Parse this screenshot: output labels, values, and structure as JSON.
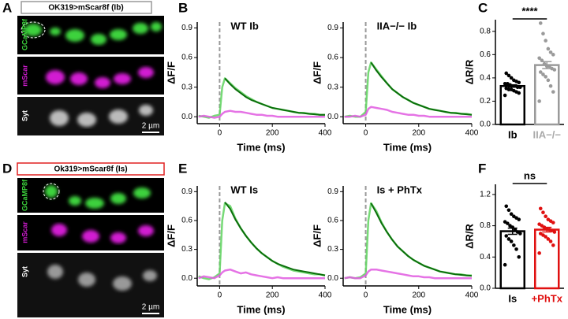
{
  "figure": {
    "panel_labels": [
      "A",
      "B",
      "C",
      "D",
      "E",
      "F"
    ]
  },
  "images": {
    "title_top": "OK319>mScar8f (Ib)",
    "title_bottom": "Ok319>mScar8f (Is)",
    "channels": [
      "GCaMP8f",
      "mScar",
      "Syt"
    ],
    "scale_bar": "2 µm"
  },
  "chart_data": [
    {
      "type": "line",
      "title": "WT Ib",
      "x_label": "Time (ms)",
      "y_label": "ΔF/F",
      "xlim": [
        -85,
        400
      ],
      "ylim": [
        -0.07,
        0.96
      ],
      "xticks": [
        0,
        200,
        400
      ],
      "yticks": [
        {
          "value": 0,
          "label": "0.0"
        },
        0.3,
        0.6,
        0.9
      ],
      "vline": 0,
      "x": [
        -80,
        -60,
        -40,
        -20,
        0,
        10,
        20,
        40,
        60,
        80,
        100,
        120,
        140,
        160,
        180,
        200,
        220,
        240,
        260,
        280,
        300,
        320,
        340,
        360,
        380,
        400
      ],
      "series": [
        {
          "color": "#5fd35f",
          "values": [
            0.01,
            0,
            -0.01,
            0.01,
            0.02,
            0.3,
            0.39,
            0.34,
            0.29,
            0.25,
            0.21,
            0.18,
            0.15,
            0.13,
            0.11,
            0.09,
            0.08,
            0.07,
            0.06,
            0.05,
            0.04,
            0.04,
            0.03,
            0.03,
            0.02,
            0.02
          ]
        },
        {
          "color": "#e05ae0",
          "values": [
            0,
            0.01,
            0,
            -0.01,
            0,
            0.03,
            0.05,
            0.06,
            0.05,
            0.05,
            0.04,
            0.03,
            0.02,
            0.02,
            0.01,
            0.01,
            0,
            0,
            0,
            0,
            0,
            0,
            0,
            0,
            0,
            0
          ]
        },
        {
          "color": "#0b6e0b",
          "values": [
            null,
            null,
            null,
            null,
            null,
            null,
            0.39,
            0.33,
            0.28,
            0.24,
            0.2,
            0.17,
            0.15,
            0.13,
            0.11,
            0.09,
            0.08,
            0.07,
            0.06,
            0.05,
            0.04,
            0.035,
            0.03,
            0.025,
            0.02,
            0.02
          ]
        }
      ]
    },
    {
      "type": "line",
      "title": "IIA−/− Ib",
      "x_label": "Time (ms)",
      "y_label": "ΔF/F",
      "xlim": [
        -85,
        400
      ],
      "ylim": [
        -0.07,
        0.96
      ],
      "xticks": [
        0,
        200,
        400
      ],
      "yticks": [
        {
          "value": 0,
          "label": "0.0"
        },
        0.3,
        0.6,
        0.9
      ],
      "vline": 0,
      "x": [
        -80,
        -60,
        -40,
        -20,
        0,
        10,
        20,
        40,
        60,
        80,
        100,
        120,
        140,
        160,
        180,
        200,
        220,
        240,
        260,
        280,
        300,
        320,
        340,
        360,
        380,
        400
      ],
      "series": [
        {
          "color": "#5fd35f",
          "values": [
            0,
            0.01,
            0,
            0,
            0.05,
            0.45,
            0.55,
            0.48,
            0.41,
            0.34,
            0.28,
            0.24,
            0.2,
            0.17,
            0.14,
            0.12,
            0.1,
            0.08,
            0.07,
            0.06,
            0.05,
            0.04,
            0.04,
            0.03,
            0.03,
            0.02
          ]
        },
        {
          "color": "#e05ae0",
          "values": [
            0,
            0,
            0.01,
            0,
            0.02,
            0.08,
            0.1,
            0.09,
            0.08,
            0.07,
            0.05,
            0.04,
            0.03,
            0.02,
            0.02,
            0.01,
            0.01,
            0,
            0,
            0,
            0,
            0,
            0,
            0,
            0,
            0
          ]
        },
        {
          "color": "#0b6e0b",
          "values": [
            null,
            null,
            null,
            null,
            null,
            null,
            0.55,
            0.47,
            0.4,
            0.34,
            0.28,
            0.24,
            0.2,
            0.17,
            0.14,
            0.12,
            0.1,
            0.08,
            0.07,
            0.06,
            0.05,
            0.04,
            0.035,
            0.03,
            0.025,
            0.02
          ]
        }
      ]
    },
    {
      "type": "bar",
      "y_label": "ΔR/R",
      "categories": [
        "Ib",
        "IIA−/−"
      ],
      "values": [
        0.33,
        0.51
      ],
      "errors": [
        0.01,
        0.03
      ],
      "colors": [
        "#000000",
        "#9a9a9a"
      ],
      "label_colors": [
        "#000000",
        "#aaaaaa"
      ],
      "annotation": "****",
      "ylim": [
        0,
        0.9
      ],
      "yticks": [
        {
          "value": 0,
          "label": "0.0"
        },
        0.2,
        0.4,
        0.6,
        0.8
      ],
      "points": [
        [
          0.25,
          0.27,
          0.28,
          0.29,
          0.3,
          0.3,
          0.31,
          0.32,
          0.32,
          0.33,
          0.33,
          0.34,
          0.35,
          0.35,
          0.36,
          0.37,
          0.38,
          0.4,
          0.42,
          0.44
        ],
        [
          0.2,
          0.28,
          0.33,
          0.38,
          0.41,
          0.43,
          0.45,
          0.47,
          0.48,
          0.5,
          0.5,
          0.52,
          0.55,
          0.57,
          0.6,
          0.62,
          0.65,
          0.72,
          0.78,
          0.87
        ]
      ]
    },
    {
      "type": "line",
      "title": "WT Is",
      "x_label": "Time (ms)",
      "y_label": "ΔF/F",
      "xlim": [
        -85,
        400
      ],
      "ylim": [
        -0.08,
        0.96
      ],
      "xticks": [
        0,
        200,
        400
      ],
      "yticks": [
        {
          "value": 0,
          "label": "0.0"
        },
        0.3,
        0.6,
        0.9
      ],
      "vline": 0,
      "x": [
        -80,
        -60,
        -40,
        -20,
        0,
        10,
        20,
        40,
        60,
        80,
        100,
        120,
        140,
        160,
        180,
        200,
        220,
        240,
        260,
        280,
        300,
        320,
        340,
        360,
        380,
        400
      ],
      "series": [
        {
          "color": "#5fd35f",
          "values": [
            0.02,
            0,
            -0.01,
            0.01,
            0.05,
            0.6,
            0.78,
            0.75,
            0.62,
            0.52,
            0.44,
            0.37,
            0.31,
            0.26,
            0.22,
            0.18,
            0.15,
            0.12,
            0.1,
            0.08,
            0.07,
            0.06,
            0.05,
            0.04,
            0.04,
            0.03
          ]
        },
        {
          "color": "#e05ae0",
          "values": [
            0,
            0.02,
            0.01,
            0,
            0.03,
            0.06,
            0.08,
            0.09,
            0.07,
            0.05,
            0.06,
            0.04,
            0.03,
            0.02,
            0.01,
            0,
            0.01,
            0,
            0,
            0,
            0,
            0,
            0,
            0,
            0,
            0
          ]
        },
        {
          "color": "#0b6e0b",
          "values": [
            null,
            null,
            null,
            null,
            null,
            null,
            0.79,
            0.72,
            0.61,
            0.52,
            0.44,
            0.37,
            0.31,
            0.26,
            0.22,
            0.18,
            0.15,
            0.13,
            0.11,
            0.09,
            0.08,
            0.07,
            0.06,
            0.05,
            0.04,
            0.03
          ]
        }
      ]
    },
    {
      "type": "line",
      "title": "Is + PhTx",
      "x_label": "Time (ms)",
      "y_label": "ΔF/F",
      "xlim": [
        -85,
        400
      ],
      "ylim": [
        -0.08,
        0.96
      ],
      "xticks": [
        0,
        200,
        400
      ],
      "yticks": [
        {
          "value": 0,
          "label": "0.0"
        },
        0.3,
        0.6,
        0.9
      ],
      "vline": 0,
      "x": [
        -80,
        -60,
        -40,
        -20,
        0,
        10,
        20,
        40,
        60,
        80,
        100,
        120,
        140,
        160,
        180,
        200,
        220,
        240,
        260,
        280,
        300,
        320,
        340,
        360,
        380,
        400
      ],
      "series": [
        {
          "color": "#5fd35f",
          "values": [
            0,
            0.01,
            0,
            0.01,
            0.05,
            0.6,
            0.78,
            0.7,
            0.58,
            0.48,
            0.4,
            0.33,
            0.28,
            0.23,
            0.19,
            0.16,
            0.13,
            0.11,
            0.09,
            0.07,
            0.06,
            0.05,
            0.04,
            0.04,
            0.03,
            0.03
          ]
        },
        {
          "color": "#e05ae0",
          "values": [
            0,
            0.01,
            0,
            0,
            0.03,
            0.07,
            0.09,
            0.09,
            0.08,
            0.07,
            0.06,
            0.05,
            0.04,
            0.03,
            0.02,
            0.02,
            0.01,
            0.01,
            0,
            0,
            0,
            0,
            0,
            0,
            0,
            0
          ]
        },
        {
          "color": "#0b6e0b",
          "values": [
            null,
            null,
            null,
            null,
            null,
            null,
            0.78,
            0.68,
            0.57,
            0.48,
            0.4,
            0.33,
            0.28,
            0.23,
            0.19,
            0.16,
            0.13,
            0.11,
            0.09,
            0.07,
            0.06,
            0.05,
            0.04,
            0.035,
            0.03,
            0.025
          ]
        }
      ]
    },
    {
      "type": "bar",
      "y_label": "ΔR/R",
      "categories": [
        "Is",
        "+PhTx"
      ],
      "values": [
        0.73,
        0.75
      ],
      "errors": [
        0.04,
        0.03
      ],
      "colors": [
        "#000000",
        "#e01010"
      ],
      "label_colors": [
        "#000000",
        "#e01010"
      ],
      "annotation": "ns",
      "ylim": [
        0,
        1.33
      ],
      "yticks": [
        {
          "value": 0,
          "label": "0.0"
        },
        0.4,
        0.8,
        1.2
      ],
      "points": [
        [
          0.3,
          0.4,
          0.5,
          0.55,
          0.6,
          0.63,
          0.67,
          0.7,
          0.72,
          0.75,
          0.78,
          0.8,
          0.83,
          0.85,
          0.88,
          0.9,
          0.92,
          0.95,
          1.0,
          1.05
        ],
        [
          0.45,
          0.55,
          0.6,
          0.63,
          0.66,
          0.68,
          0.7,
          0.72,
          0.74,
          0.75,
          0.76,
          0.78,
          0.8,
          0.82,
          0.84,
          0.86,
          0.88,
          0.92,
          0.97,
          1.02
        ]
      ]
    }
  ]
}
